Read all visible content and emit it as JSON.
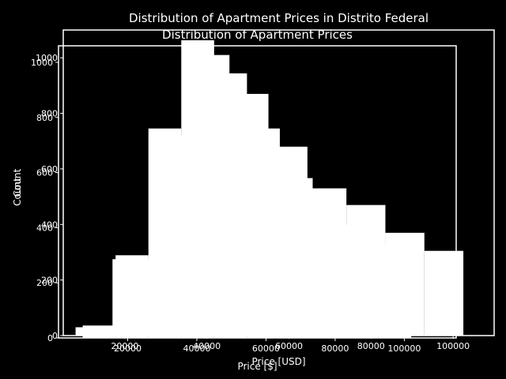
{
  "chart_data": [
    {
      "type": "bar",
      "title": "Distribution of Apartment Prices in Distrito Federal",
      "xlabel": "Price [USD]",
      "ylabel": "Count",
      "xlim": [
        5000,
        110000
      ],
      "ylim": [
        0,
        1100
      ],
      "xticks": [
        20000,
        40000,
        60000,
        80000,
        100000
      ],
      "yticks": [
        0,
        200,
        400,
        600,
        800,
        1000
      ],
      "grid": false,
      "bins": [
        {
          "x0": 8000,
          "x1": 17000,
          "count": 30
        },
        {
          "x0": 17000,
          "x1": 26500,
          "count": 275
        },
        {
          "x0": 26500,
          "x1": 36000,
          "count": 720
        },
        {
          "x0": 36000,
          "x1": 45500,
          "count": 1010
        },
        {
          "x0": 45500,
          "x1": 55000,
          "count": 870
        },
        {
          "x0": 55000,
          "x1": 64500,
          "count": 680
        },
        {
          "x0": 64500,
          "x1": 74000,
          "count": 530
        },
        {
          "x0": 74000,
          "x1": 83500,
          "count": 470
        },
        {
          "x0": 83500,
          "x1": 93000,
          "count": 370
        },
        {
          "x0": 93000,
          "x1": 102500,
          "count": 305
        }
      ]
    },
    {
      "type": "bar",
      "title": "Distribution of Apartment Prices",
      "xlabel": "Price [$]",
      "ylabel": "Count",
      "xlim": [
        0,
        115000
      ],
      "ylim": [
        0,
        1060
      ],
      "xticks": [
        20000,
        40000,
        60000,
        80000,
        100000
      ],
      "yticks": [
        0,
        200,
        400,
        600,
        800,
        1000
      ],
      "grid": false,
      "bins": [
        {
          "x0": 7000,
          "x1": 16500,
          "count": 45
        },
        {
          "x0": 16500,
          "x1": 26000,
          "count": 300
        },
        {
          "x0": 26000,
          "x1": 35500,
          "count": 760
        },
        {
          "x0": 35500,
          "x1": 45000,
          "count": 1080
        },
        {
          "x0": 45000,
          "x1": 54500,
          "count": 960
        },
        {
          "x0": 54500,
          "x1": 64000,
          "count": 760
        },
        {
          "x0": 64000,
          "x1": 73500,
          "count": 580
        },
        {
          "x0": 73500,
          "x1": 83000,
          "count": 520
        },
        {
          "x0": 83000,
          "x1": 92500,
          "count": 410
        },
        {
          "x0": 92500,
          "x1": 102000,
          "count": 335
        }
      ]
    }
  ],
  "colors": {
    "background": "#000000",
    "foreground": "#ffffff"
  }
}
